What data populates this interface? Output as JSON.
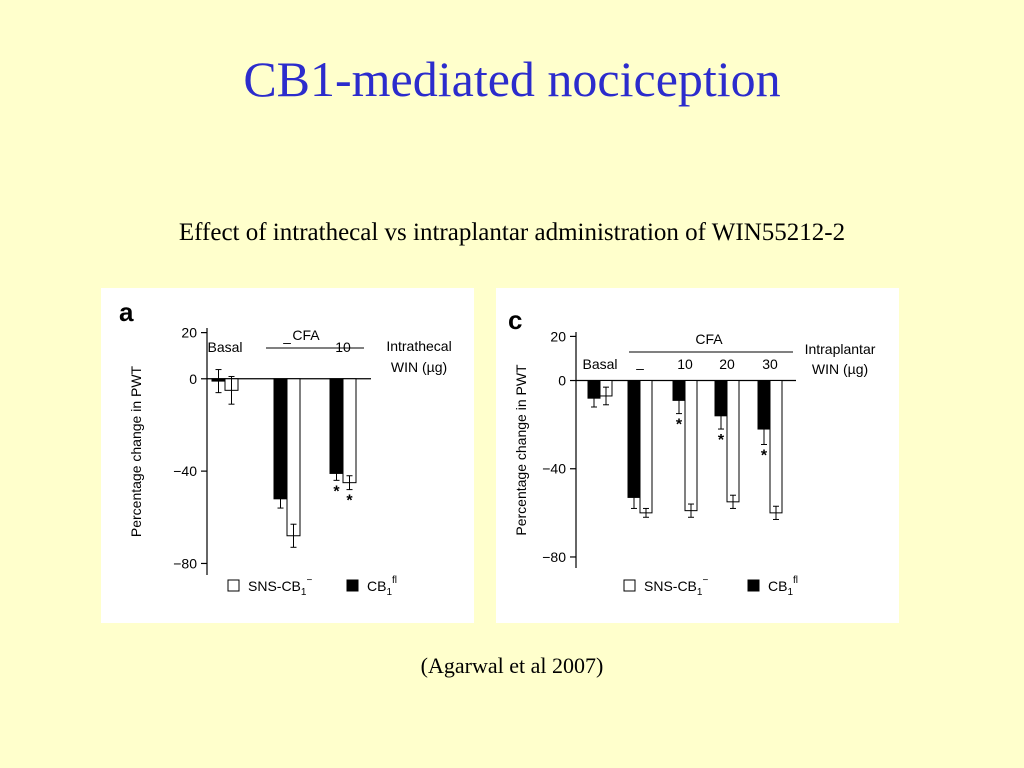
{
  "slide": {
    "title": "CB1-mediated nociception",
    "subtitle": "Effect of intrathecal vs intraplantar administration of WIN55212-2",
    "citation": "(Agarwal et al 2007)"
  },
  "colors": {
    "title": "#2c2ccc",
    "background": "#ffffcc",
    "open_bar": "#ffffff",
    "filled_bar": "#000000"
  },
  "chart_data": [
    {
      "panel_label": "a",
      "type": "bar",
      "ylabel": "Percentage change in PWT",
      "yticks": [
        20,
        0,
        -40,
        -80
      ],
      "ytick_labels": [
        "20",
        "0",
        "−40",
        "−80"
      ],
      "ylim": [
        -85,
        22
      ],
      "condition_label": "Intrathecal",
      "dose_label": "WIN (µg)",
      "group_header": "CFA",
      "categories": [
        "Basal",
        "–",
        "10"
      ],
      "series": [
        {
          "name": "CB1fl",
          "fill": "filled",
          "values": [
            -1,
            -52,
            -41
          ],
          "errors": [
            5,
            4,
            3
          ]
        },
        {
          "name": "SNS-CB1−",
          "fill": "open",
          "values": [
            -5,
            -68,
            -45
          ],
          "errors": [
            6,
            5,
            3
          ]
        }
      ],
      "significance": [
        {
          "category": "10",
          "series": "CB1fl",
          "text": "*"
        },
        {
          "category": "10",
          "series": "SNS-CB1−",
          "text": "*"
        }
      ],
      "legend": [
        {
          "fill": "open",
          "label": "SNS-CB",
          "sub": "1",
          "sup": "−"
        },
        {
          "fill": "filled",
          "label": "CB",
          "sub": "1",
          "sup": "fl"
        }
      ]
    },
    {
      "panel_label": "c",
      "type": "bar",
      "ylabel": "Percentage change in PWT",
      "yticks": [
        20,
        0,
        -40,
        -80
      ],
      "ytick_labels": [
        "20",
        "0",
        "−40",
        "−80"
      ],
      "ylim": [
        -85,
        22
      ],
      "condition_label": "Intraplantar",
      "dose_label": "WIN (µg)",
      "group_header": "CFA",
      "categories": [
        "Basal",
        "–",
        "10",
        "20",
        "30"
      ],
      "series": [
        {
          "name": "CB1fl",
          "fill": "filled",
          "values": [
            -8,
            -53,
            -9,
            -16,
            -22
          ],
          "errors": [
            4,
            5,
            6,
            6,
            7
          ]
        },
        {
          "name": "SNS-CB1−",
          "fill": "open",
          "values": [
            -7,
            -60,
            -59,
            -55,
            -60
          ],
          "errors": [
            4,
            2,
            3,
            3,
            3
          ]
        }
      ],
      "significance": [
        {
          "category": "10",
          "series": "CB1fl",
          "text": "*"
        },
        {
          "category": "20",
          "series": "CB1fl",
          "text": "*"
        },
        {
          "category": "30",
          "series": "CB1fl",
          "text": "*"
        }
      ],
      "legend": [
        {
          "fill": "open",
          "label": "SNS-CB",
          "sub": "1",
          "sup": "−"
        },
        {
          "fill": "filled",
          "label": "CB",
          "sub": "1",
          "sup": "fl"
        }
      ]
    }
  ]
}
